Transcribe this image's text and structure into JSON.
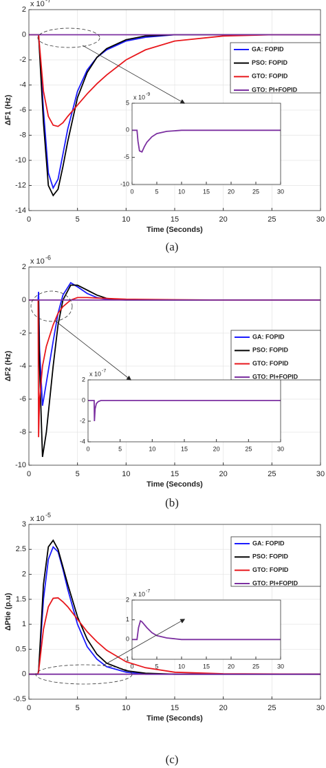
{
  "chart_data": [
    {
      "type": "line",
      "ylabel": "ΔF1 (Hz)",
      "xlabel": "Time (Seconds)",
      "caption": "(a)",
      "y_scale_base": "x 10",
      "y_scale_exponent": "-7",
      "xlim": [
        0,
        30
      ],
      "xticks": [
        0,
        5,
        10,
        15,
        20,
        25,
        30
      ],
      "ylim": [
        -14,
        2
      ],
      "yticks": [
        2,
        0,
        -2,
        -4,
        -6,
        -8,
        -10,
        -12,
        -14
      ],
      "grid": true,
      "x": [
        0,
        1,
        1.5,
        2,
        2.5,
        3,
        3.5,
        4,
        5,
        6,
        7,
        8,
        10,
        12,
        15,
        20,
        25,
        30
      ],
      "series": [
        {
          "name": "GA: FOPID",
          "color": "#1a1aff",
          "values": [
            0,
            0,
            -6,
            -11,
            -12.2,
            -11.5,
            -9.5,
            -7.5,
            -4.5,
            -2.8,
            -1.8,
            -1.2,
            -0.5,
            -0.2,
            0,
            0,
            0,
            0
          ]
        },
        {
          "name": "PSO: FOPID",
          "color": "#000000",
          "values": [
            0,
            0,
            -7,
            -12,
            -12.8,
            -12.3,
            -10.5,
            -8.5,
            -5,
            -3,
            -1.8,
            -1.1,
            -0.4,
            -0.1,
            0,
            0,
            0,
            0
          ]
        },
        {
          "name": "GTO: FOPID",
          "color": "#e8161b",
          "values": [
            0,
            0,
            -4.5,
            -6.5,
            -7.2,
            -7.3,
            -7,
            -6.5,
            -5.6,
            -4.7,
            -3.9,
            -3.2,
            -2,
            -1.2,
            -0.5,
            -0.1,
            0,
            0
          ]
        },
        {
          "name": "GTO: PI+FOPID",
          "color": "#7b2fa0",
          "values": [
            0,
            0,
            0,
            0,
            0,
            0,
            0,
            0,
            0,
            0,
            0,
            0,
            0,
            0,
            0,
            0,
            0,
            0
          ]
        }
      ],
      "inset": {
        "type": "line",
        "y_scale_base": "x 10",
        "y_scale_exponent": "-9",
        "xlim": [
          0,
          30
        ],
        "xticks": [
          0,
          5,
          10,
          15,
          20,
          25,
          30
        ],
        "ylim": [
          -10,
          5
        ],
        "yticks": [
          5,
          0,
          -5,
          -10
        ],
        "x": [
          0,
          1,
          1.2,
          1.5,
          2,
          2.5,
          3,
          4,
          5,
          7,
          10,
          15,
          20,
          30
        ],
        "series": [
          {
            "color": "#7b2fa0",
            "values": [
              0,
              0,
              -2,
              -3.8,
              -4,
              -3,
              -2.2,
              -1.2,
              -0.6,
              -0.2,
              0,
              0,
              0,
              0
            ]
          }
        ]
      }
    },
    {
      "type": "line",
      "ylabel": "ΔF2 (Hz)",
      "xlabel": "Time (Seconds)",
      "caption": "(b)",
      "y_scale_base": "x 10",
      "y_scale_exponent": "-6",
      "xlim": [
        0,
        30
      ],
      "xticks": [
        0,
        5,
        10,
        15,
        20,
        25,
        30
      ],
      "ylim": [
        -10,
        2
      ],
      "yticks": [
        2,
        0,
        -2,
        -4,
        -6,
        -8,
        -10
      ],
      "grid": true,
      "x": [
        0,
        0.95,
        1,
        1.1,
        1.4,
        1.8,
        2.5,
        3,
        3.5,
        4.3,
        5,
        6,
        7,
        8,
        10,
        15,
        20,
        30
      ],
      "series": [
        {
          "name": "GA: FOPID",
          "color": "#1a1aff",
          "values": [
            0,
            0,
            0.5,
            -3,
            -6.4,
            -5,
            -2.5,
            -0.8,
            0.3,
            1.05,
            0.8,
            0.4,
            0.15,
            0.05,
            0,
            0,
            0,
            0
          ]
        },
        {
          "name": "PSO: FOPID",
          "color": "#000000",
          "values": [
            0,
            0,
            0,
            -4,
            -9.5,
            -8,
            -4,
            -1.5,
            0,
            0.9,
            0.9,
            0.6,
            0.3,
            0.1,
            0,
            0,
            0,
            0
          ]
        },
        {
          "name": "GTO: FOPID",
          "color": "#e8161b",
          "values": [
            0,
            0,
            -8.3,
            -6,
            -4,
            -2.8,
            -1.5,
            -0.8,
            -0.4,
            0,
            0.15,
            0.15,
            0.12,
            0.1,
            0.05,
            0.02,
            0,
            0
          ]
        },
        {
          "name": "GTO: PI+FOPID",
          "color": "#7b2fa0",
          "values": [
            0,
            0,
            0,
            0,
            0,
            0,
            0,
            0,
            0,
            0,
            0,
            0,
            0,
            0,
            0,
            0,
            0,
            0
          ]
        }
      ],
      "inset": {
        "type": "line",
        "y_scale_base": "x 10",
        "y_scale_exponent": "-7",
        "xlim": [
          0,
          30
        ],
        "xticks": [
          0,
          5,
          10,
          15,
          20,
          25,
          30
        ],
        "ylim": [
          -4,
          2
        ],
        "yticks": [
          2,
          0,
          -2,
          -4
        ],
        "x": [
          0,
          0.95,
          1,
          1.1,
          1.3,
          1.6,
          2,
          3,
          30
        ],
        "series": [
          {
            "color": "#7b2fa0",
            "values": [
              0,
              0,
              -2,
              -0.8,
              -0.3,
              -0.1,
              0,
              0,
              0
            ]
          }
        ]
      }
    },
    {
      "type": "line",
      "ylabel": "ΔPtie (p.u)",
      "xlabel": "Time (Seconds)",
      "caption": "(c)",
      "y_scale_base": "x 10",
      "y_scale_exponent": "-5",
      "xlim": [
        0,
        30
      ],
      "xticks": [
        0,
        5,
        10,
        15,
        20,
        25,
        30
      ],
      "ylim": [
        -0.5,
        3
      ],
      "yticks": [
        3,
        2.5,
        2,
        1.5,
        1,
        0.5,
        0,
        -0.5
      ],
      "grid": true,
      "x": [
        0,
        0.9,
        1,
        1.5,
        2,
        2.5,
        3,
        3.5,
        4,
        5,
        6,
        7,
        8,
        10,
        12,
        15,
        20,
        30
      ],
      "series": [
        {
          "name": "GA: FOPID",
          "color": "#1a1aff",
          "values": [
            0,
            0,
            0.05,
            1.5,
            2.3,
            2.55,
            2.45,
            2.1,
            1.7,
            1,
            0.55,
            0.3,
            0.15,
            0.04,
            0,
            0,
            0,
            0
          ]
        },
        {
          "name": "PSO: FOPID",
          "color": "#000000",
          "values": [
            0,
            0,
            0.05,
            1.8,
            2.55,
            2.68,
            2.5,
            2.15,
            1.8,
            1.15,
            0.7,
            0.4,
            0.22,
            0.07,
            0.02,
            0,
            0,
            0
          ]
        },
        {
          "name": "GTO: FOPID",
          "color": "#e8161b",
          "values": [
            0,
            0,
            0.05,
            0.9,
            1.35,
            1.52,
            1.53,
            1.45,
            1.35,
            1.1,
            0.85,
            0.65,
            0.48,
            0.25,
            0.13,
            0.04,
            0.01,
            0
          ]
        },
        {
          "name": "GTO: PI+FOPID",
          "color": "#7b2fa0",
          "values": [
            0,
            0,
            0,
            0,
            0,
            0,
            0,
            0,
            0,
            0,
            0,
            0,
            0,
            0,
            0,
            0,
            0,
            0
          ]
        }
      ],
      "inset": {
        "type": "line",
        "y_scale_base": "x 10",
        "y_scale_exponent": "-7",
        "xlim": [
          0,
          30
        ],
        "xticks": [
          0,
          5,
          10,
          15,
          20,
          25,
          30
        ],
        "ylim": [
          -1,
          2
        ],
        "yticks": [
          2,
          1,
          0,
          -1
        ],
        "x": [
          0,
          1,
          1.3,
          1.7,
          2,
          3,
          4,
          5,
          7,
          10,
          30
        ],
        "series": [
          {
            "color": "#7b2fa0",
            "values": [
              0,
              0,
              0.6,
              0.95,
              0.9,
              0.6,
              0.35,
              0.2,
              0.08,
              0,
              0
            ]
          }
        ]
      }
    }
  ]
}
